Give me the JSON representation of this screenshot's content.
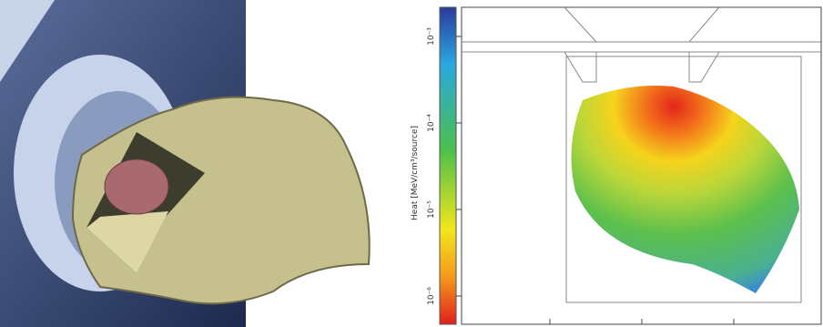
{
  "colorbar": {
    "label": "Heat [MeV/cm³/source]",
    "ticks": [
      "10⁻³",
      "10⁻⁴",
      "10⁻⁵",
      "10⁻⁶"
    ]
  }
}
